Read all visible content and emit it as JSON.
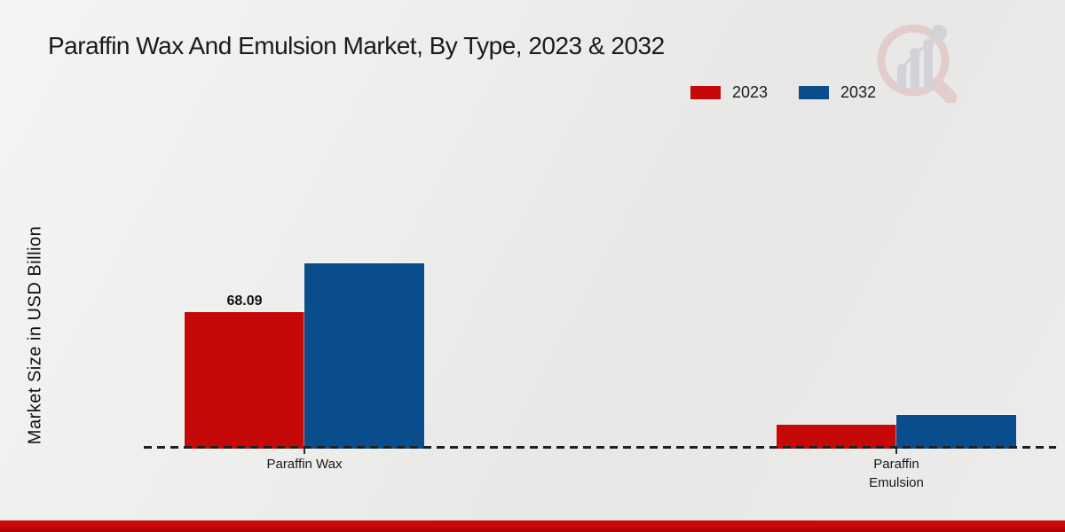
{
  "title": "Paraffin Wax And Emulsion Market, By Type, 2023 & 2032",
  "y_axis_label": "Market Size in USD Billion",
  "legend": {
    "position": "top-right",
    "items": [
      {
        "label": "2023",
        "color": "#c50909"
      },
      {
        "label": "2032",
        "color": "#0a4d8c"
      }
    ]
  },
  "colors": {
    "bar_2023": "#c50909",
    "bar_2032": "#0a4d8c",
    "axis_line": "#1f1f1f",
    "bottom_band_top": "#cb0707",
    "bottom_band_bottom": "#a50303",
    "logo_ring": "#e3c8c8",
    "logo_bars": "#cdd0d6"
  },
  "chart_data": {
    "type": "bar",
    "categories": [
      "Paraffin Wax",
      "Paraffin Emulsion"
    ],
    "series": [
      {
        "name": "2023",
        "color": "#c50909",
        "values": [
          68.09,
          11.9
        ]
      },
      {
        "name": "2032",
        "color": "#0a4d8c",
        "values": [
          92.4,
          16.8
        ]
      }
    ],
    "value_labels": [
      {
        "series_index": 0,
        "category_index": 0,
        "text": "68.09"
      }
    ],
    "title": "Paraffin Wax And Emulsion Market, By Type, 2023 & 2032",
    "xlabel": "",
    "ylabel": "Market Size in USD Billion",
    "y_axis_ticks_visible": false,
    "gridlines": false,
    "baseline_style": "dashed",
    "legend_position": "top-right"
  }
}
